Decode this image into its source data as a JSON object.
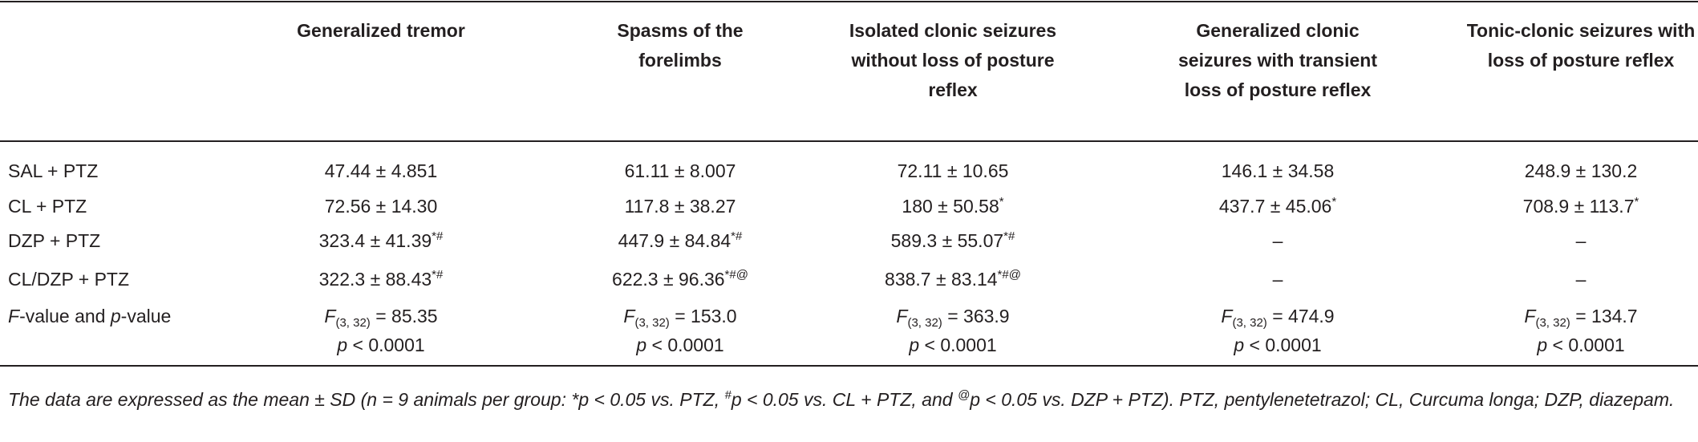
{
  "table": {
    "header": [
      "Generalized tremor",
      "Spasms of the forelimbs",
      "Isolated clonic seizures without loss of posture reflex",
      "Generalized clonic seizures with transient loss of posture reflex",
      "Tonic-clonic seizures with loss of posture reflex"
    ],
    "rows": [
      {
        "label": [
          {
            "text": "SAL + PTZ"
          }
        ],
        "cells": [
          {
            "text": "47.44 ± 4.851"
          },
          {
            "text": "61.11 ± 8.007"
          },
          {
            "text": "72.11 ± 10.65"
          },
          {
            "text": "146.1 ± 34.58"
          },
          {
            "text": "248.9 ± 130.2"
          }
        ]
      },
      {
        "label": [
          {
            "text": "CL + PTZ"
          }
        ],
        "cells": [
          {
            "text": "72.56 ± 14.30"
          },
          {
            "text": "117.8 ± 38.27"
          },
          {
            "text": "180 ± 50.58",
            "sup": "*"
          },
          {
            "text": "437.7 ± 45.06",
            "sup": "*"
          },
          {
            "text": "708.9 ± 113.7",
            "sup": "*"
          }
        ]
      },
      {
        "label": [
          {
            "text": "DZP + PTZ"
          }
        ],
        "cells": [
          {
            "text": "323.4 ± 41.39",
            "sup": "*#"
          },
          {
            "text": "447.9 ± 84.84",
            "sup": "*#"
          },
          {
            "text": "589.3 ± 55.07",
            "sup": "*#"
          },
          {
            "text": "–"
          },
          {
            "text": "–"
          }
        ]
      },
      {
        "label": [
          {
            "text": "CL/DZP + PTZ"
          }
        ],
        "cells": [
          {
            "text": "322.3 ± 88.43",
            "sup": "*#"
          },
          {
            "text": "622.3 ± 96.36",
            "sup": "*#@"
          },
          {
            "text": "838.7 ± 83.14",
            "sup": "*#@"
          },
          {
            "text": "–"
          },
          {
            "text": "–"
          }
        ]
      },
      {
        "label": [
          {
            "text": "F",
            "italic": true
          },
          {
            "text": "-value and "
          },
          {
            "text": "p",
            "italic": true
          },
          {
            "text": "-value"
          }
        ],
        "cells": [
          {
            "stat": "F",
            "df": "(3, 32)",
            "text": "= 85.35",
            "p": "p",
            "p_text": "< 0.0001"
          },
          {
            "stat": "F",
            "df": "(3, 32)",
            "text": "= 153.0",
            "p": "p",
            "p_text": "< 0.0001"
          },
          {
            "stat": "F",
            "df": "(3, 32)",
            "text": "= 363.9",
            "p": "p",
            "p_text": "< 0.0001"
          },
          {
            "stat": "F",
            "df": "(3, 32)",
            "text": "= 474.9",
            "p": "p",
            "p_text": "< 0.0001"
          },
          {
            "stat": "F",
            "df": "(3, 32)",
            "text": "= 134.7",
            "p": "p",
            "p_text": "< 0.0001"
          }
        ]
      }
    ],
    "footnote": [
      {
        "text": "The data are expressed as the mean ± SD (n = 9 animals per group: *p < 0.05 vs. PTZ, "
      },
      {
        "text": "#",
        "sup": true
      },
      {
        "text": "p < 0.05 vs. CL + PTZ, and "
      },
      {
        "text": "@",
        "sup": true
      },
      {
        "text": "p < 0.05 vs. DZP + PTZ). PTZ, pentylenetetrazol; CL, Curcuma longa; DZP, diazepam."
      }
    ]
  }
}
